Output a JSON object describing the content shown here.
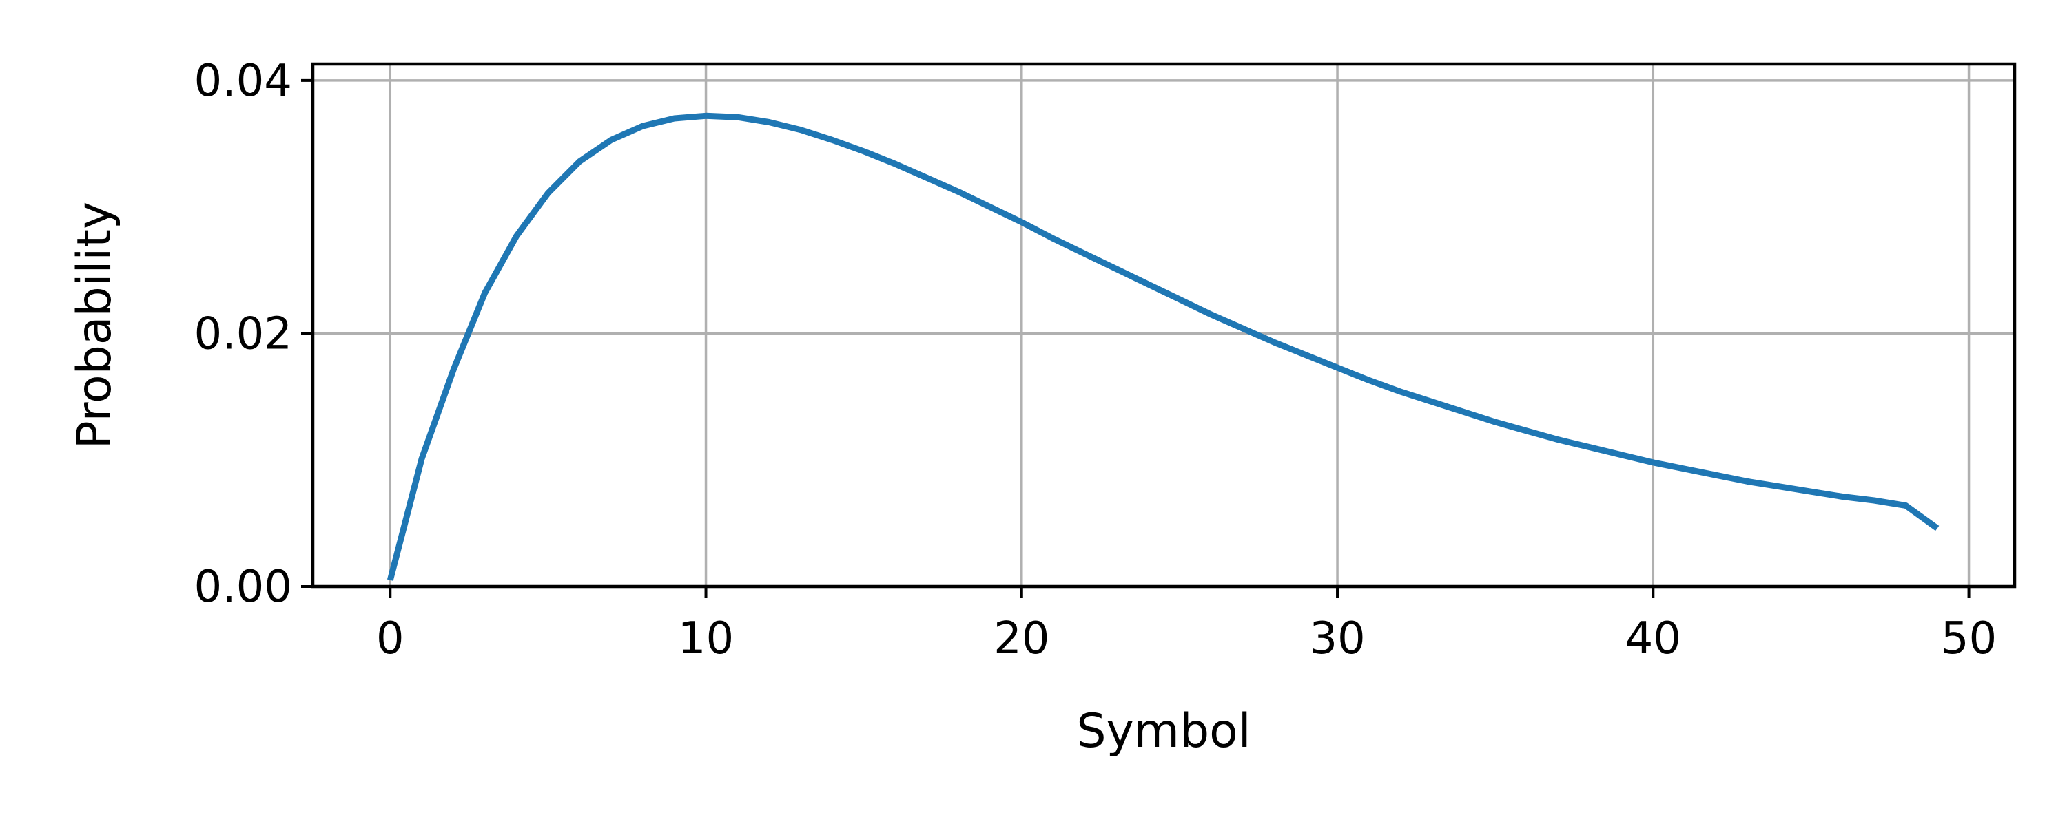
{
  "chart_data": {
    "type": "line",
    "title": "",
    "xlabel": "Symbol",
    "ylabel": "Probability",
    "xlim": [
      -2.45,
      51.45
    ],
    "ylim": [
      0,
      0.0413
    ],
    "x_ticks": [
      0,
      10,
      20,
      30,
      40,
      50
    ],
    "x_tick_labels": [
      "0",
      "10",
      "20",
      "30",
      "40",
      "50"
    ],
    "y_ticks": [
      0,
      0.02,
      0.04
    ],
    "y_tick_labels": [
      "0.00",
      "0.02",
      "0.04"
    ],
    "grid": true,
    "legend": "none",
    "series": [
      {
        "color": "#1f77b4",
        "x": [
          0,
          1,
          2,
          3,
          4,
          5,
          6,
          7,
          8,
          9,
          10,
          11,
          12,
          13,
          14,
          15,
          16,
          17,
          18,
          19,
          20,
          21,
          22,
          23,
          24,
          25,
          26,
          27,
          28,
          29,
          30,
          31,
          32,
          33,
          34,
          35,
          36,
          37,
          38,
          39,
          40,
          41,
          42,
          43,
          44,
          45,
          46,
          47,
          48,
          49
        ],
        "y": [
          0.0005,
          0.0101,
          0.0171,
          0.0232,
          0.0277,
          0.0311,
          0.0336,
          0.0353,
          0.0364,
          0.037,
          0.0372,
          0.0371,
          0.0367,
          0.0361,
          0.0353,
          0.0344,
          0.0334,
          0.0323,
          0.0312,
          0.03,
          0.0288,
          0.0275,
          0.0263,
          0.0251,
          0.0239,
          0.0227,
          0.0215,
          0.0204,
          0.0193,
          0.0183,
          0.0173,
          0.0163,
          0.0154,
          0.0146,
          0.0138,
          0.013,
          0.0123,
          0.0116,
          0.011,
          0.0104,
          0.0098,
          0.0093,
          0.0088,
          0.0083,
          0.0079,
          0.0075,
          0.0071,
          0.0068,
          0.0064,
          0.0046
        ]
      }
    ]
  }
}
